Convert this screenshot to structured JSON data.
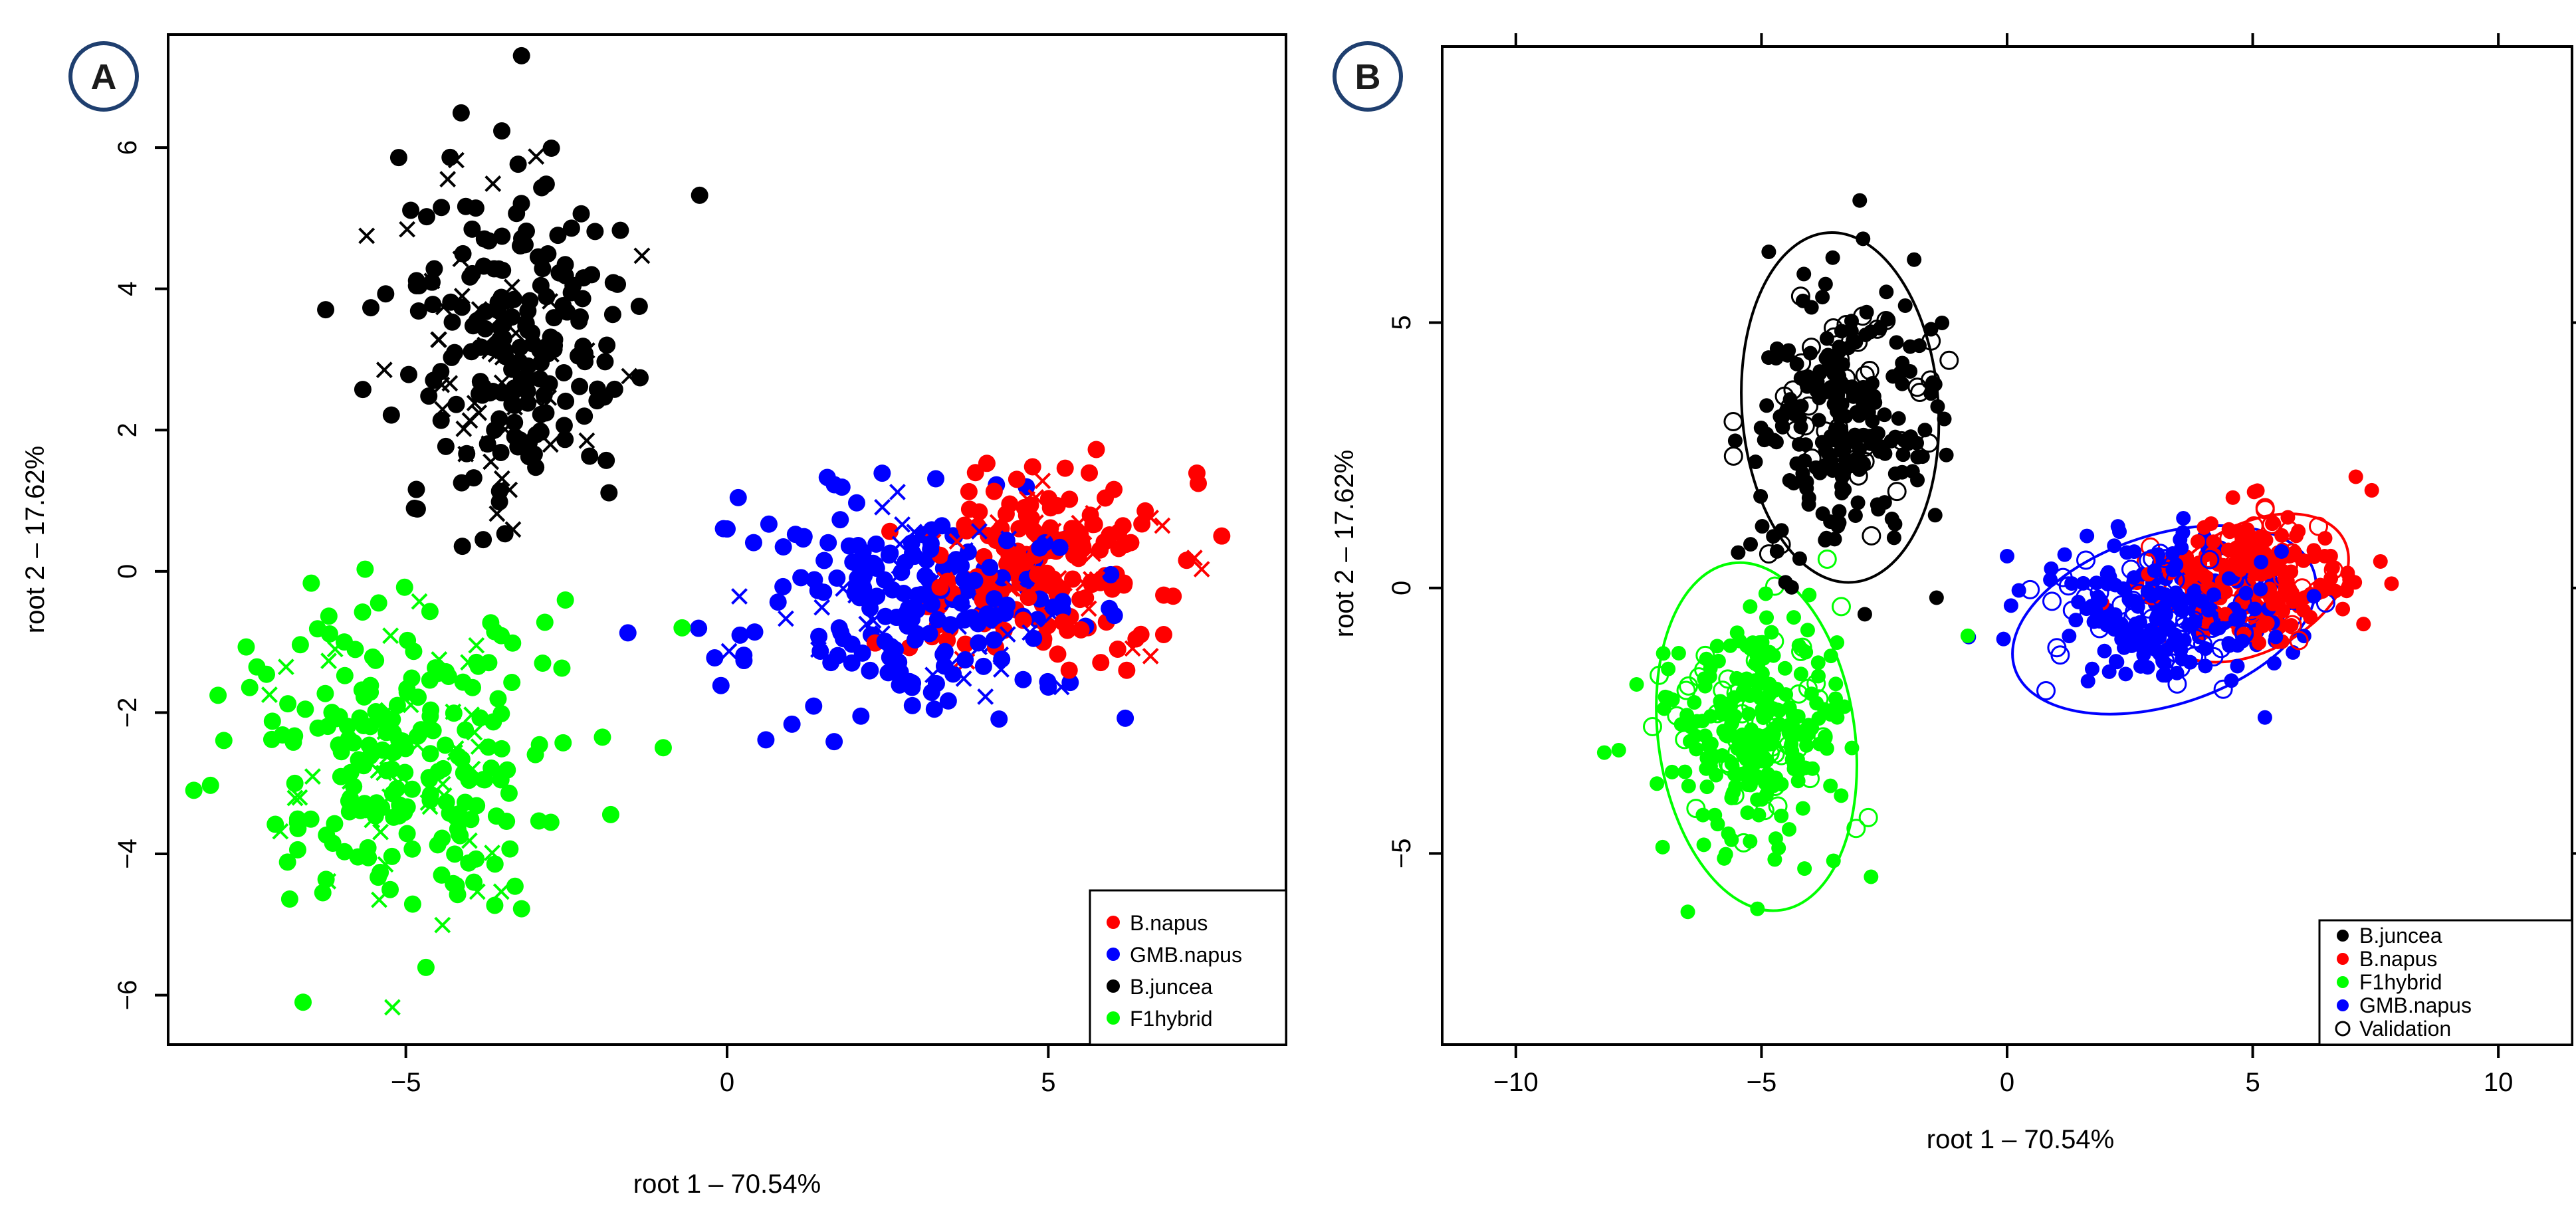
{
  "colors": {
    "b_napus": "#ff0000",
    "gmb_napus": "#0000ff",
    "b_juncea": "#000000",
    "f1hybrid": "#00ff00",
    "badge_ring": "#1f3f6f"
  },
  "chart_data": [
    {
      "panel": "A",
      "type": "scatter",
      "xlabel": "root 1 – 70.54%",
      "ylabel": "root 2 – 17.62%",
      "xlim": [
        -8.7,
        8.7
      ],
      "ylim": [
        -6.7,
        7.6
      ],
      "xticks": [
        -5,
        0,
        5
      ],
      "xtick_labels": [
        "−5",
        "0",
        "5"
      ],
      "yticks": [
        -6,
        -4,
        -2,
        0,
        2,
        4,
        6
      ],
      "ytick_labels": [
        "−6",
        "−4",
        "−2",
        "0",
        "2",
        "4",
        "6"
      ],
      "legend_position": "bottom-right",
      "legend": [
        "B.napus",
        "GMB.napus",
        "B.juncea",
        "F1hybrid"
      ],
      "series": [
        {
          "name": "B.napus",
          "color_key": "b_napus",
          "center": [
            5.0,
            0.1
          ],
          "spread": [
            1.0,
            0.65
          ],
          "n": 200,
          "markers": "dot+x",
          "seed": 11
        },
        {
          "name": "GMB.napus",
          "color_key": "gmb_napus",
          "center": [
            3.0,
            -0.5
          ],
          "spread": [
            1.25,
            0.75
          ],
          "n": 240,
          "markers": "dot+x",
          "seed": 23
        },
        {
          "name": "B.juncea",
          "color_key": "b_juncea",
          "center": [
            -3.3,
            3.2
          ],
          "spread": [
            0.95,
            1.25
          ],
          "n": 240,
          "markers": "dot+x",
          "seed": 37
        },
        {
          "name": "F1hybrid",
          "color_key": "f1hybrid",
          "center": [
            -5.0,
            -2.7
          ],
          "spread": [
            1.15,
            1.15
          ],
          "n": 260,
          "markers": "dot+x",
          "seed": 51
        }
      ],
      "outliers": [
        {
          "series": "B.juncea",
          "x": -3.2,
          "y": 7.3
        },
        {
          "series": "F1hybrid",
          "x": -6.6,
          "y": -6.1
        },
        {
          "series": "F1hybrid",
          "x": -8.3,
          "y": -3.1
        },
        {
          "series": "F1hybrid",
          "x": -0.7,
          "y": -0.8
        },
        {
          "series": "GMB.napus",
          "x": 0.0,
          "y": 0.6
        },
        {
          "series": "B.napus",
          "x": 7.7,
          "y": 0.5
        }
      ]
    },
    {
      "panel": "B",
      "type": "scatter",
      "xlabel": "root 1 – 70.54%",
      "ylabel": "root 2 – 17.62%",
      "xlim": [
        -11.5,
        11.5
      ],
      "ylim": [
        -8.6,
        10.2
      ],
      "xticks": [
        -10,
        -5,
        0,
        5,
        10
      ],
      "xtick_labels": [
        "−10",
        "−5",
        "0",
        "5",
        "10"
      ],
      "yticks": [
        -5,
        0,
        5
      ],
      "ytick_labels": [
        "−5",
        "0",
        "5"
      ],
      "legend_position": "bottom-right",
      "legend": [
        "B.juncea",
        "B.napus",
        "F1hybrid",
        "GMB.napus",
        "Validation"
      ],
      "series": [
        {
          "name": "B.juncea",
          "color_key": "b_juncea",
          "center": [
            -3.3,
            3.3
          ],
          "spread": [
            0.9,
            1.2
          ],
          "n": 260,
          "markers": "dot+circle",
          "seed": 71
        },
        {
          "name": "B.napus",
          "color_key": "b_napus",
          "center": [
            5.1,
            0.2
          ],
          "spread": [
            0.95,
            0.65
          ],
          "n": 220,
          "markers": "dot+circle",
          "seed": 83
        },
        {
          "name": "F1hybrid",
          "color_key": "f1hybrid",
          "center": [
            -5.1,
            -2.7
          ],
          "spread": [
            0.95,
            1.15
          ],
          "n": 280,
          "markers": "dot+circle",
          "seed": 97
        },
        {
          "name": "GMB.napus",
          "color_key": "gmb_napus",
          "center": [
            3.2,
            -0.5
          ],
          "spread": [
            1.2,
            0.7
          ],
          "n": 260,
          "markers": "dot+circle",
          "seed": 109
        }
      ],
      "ellipses": [
        {
          "series": "B.juncea",
          "cx": -3.4,
          "cy": 3.4,
          "rx": 2.0,
          "ry": 3.3,
          "rot": -4
        },
        {
          "series": "F1hybrid",
          "cx": -5.1,
          "cy": -2.8,
          "rx": 2.0,
          "ry": 3.3,
          "rot": -8
        },
        {
          "series": "GMB.napus",
          "cx": 3.2,
          "cy": -0.6,
          "rx": 3.2,
          "ry": 1.6,
          "rot": -18
        },
        {
          "series": "B.napus",
          "cx": 5.0,
          "cy": 0.0,
          "rx": 2.1,
          "ry": 1.2,
          "rot": -28
        }
      ],
      "outliers": [
        {
          "series": "B.juncea",
          "x": -3.0,
          "y": 7.3
        },
        {
          "series": "F1hybrid",
          "x": -6.5,
          "y": -6.1
        },
        {
          "series": "F1hybrid",
          "x": -8.2,
          "y": -3.1
        },
        {
          "series": "F1hybrid",
          "x": -0.8,
          "y": -0.9
        },
        {
          "series": "GMB.napus",
          "x": 0.0,
          "y": 0.6
        },
        {
          "series": "B.napus",
          "x": 7.6,
          "y": 0.5
        }
      ]
    }
  ],
  "panels": {
    "a": {
      "badge": "A"
    },
    "b": {
      "badge": "B"
    }
  }
}
